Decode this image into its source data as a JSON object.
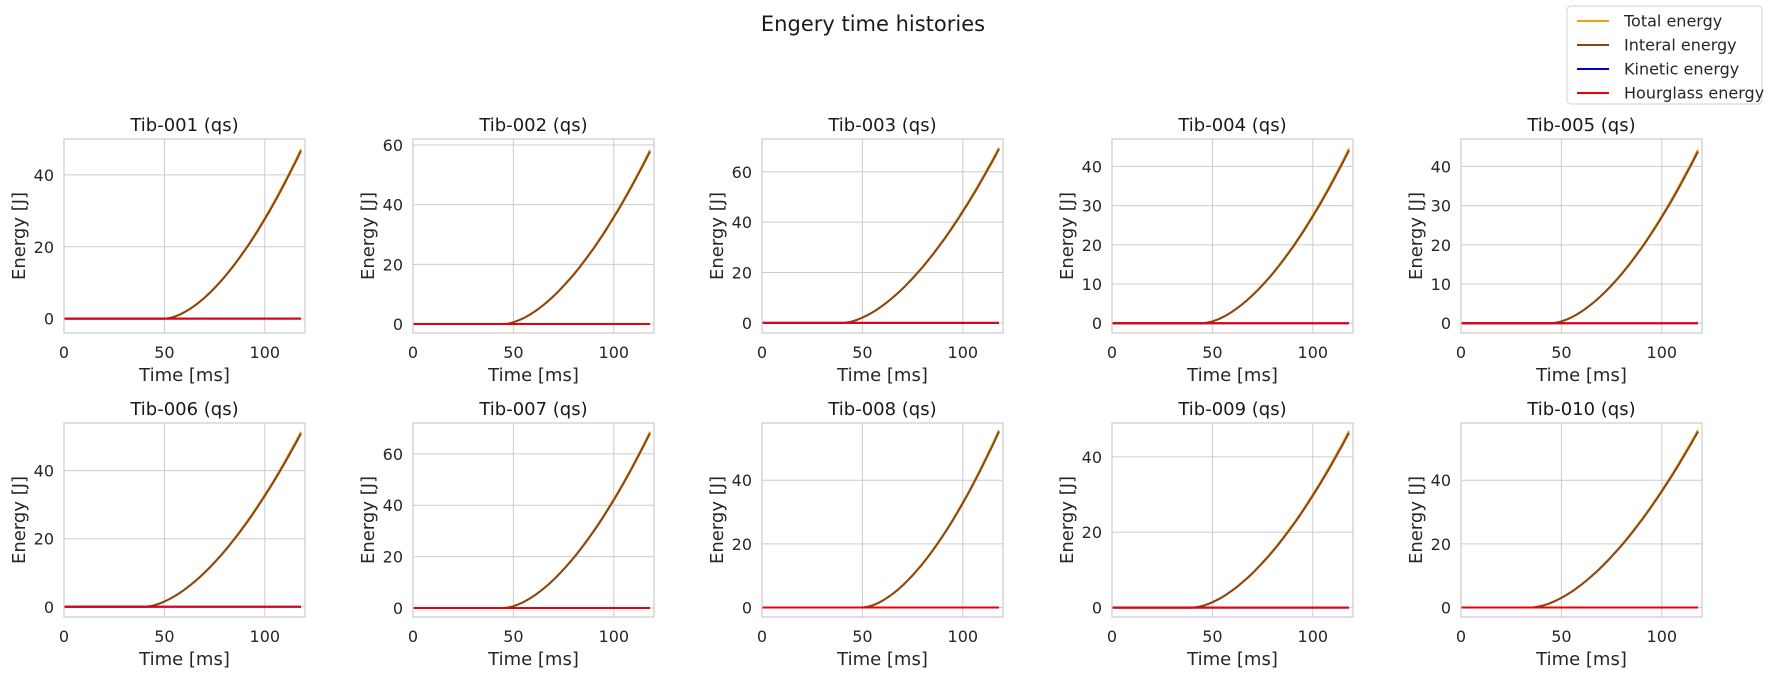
{
  "title": "Engery time histories",
  "legend": [
    {
      "label": "Total energy",
      "color": "#e8a317"
    },
    {
      "label": "Interal energy",
      "color": "#8b4513"
    },
    {
      "label": "Kinetic energy",
      "color": "#0000cc"
    },
    {
      "label": "Hourglass energy",
      "color": "#e8000b"
    }
  ],
  "chart_data": [
    {
      "type": "line",
      "title": "Tib-001 (qs)",
      "xlabel": "Time [ms]",
      "ylabel": "Energy [J]",
      "xlim": [
        0,
        120
      ],
      "ylim": [
        -4,
        50
      ],
      "xticks": [
        0,
        50,
        100
      ],
      "yticks": [
        0,
        20,
        40
      ],
      "onset": 50,
      "final_total": 47.2,
      "final_internal": 46.7
    },
    {
      "type": "line",
      "title": "Tib-002 (qs)",
      "xlabel": "Time [ms]",
      "ylabel": "Energy [J]",
      "xlim": [
        0,
        120
      ],
      "ylim": [
        -3,
        62
      ],
      "xticks": [
        0,
        50,
        100
      ],
      "yticks": [
        0,
        20,
        40,
        60
      ],
      "onset": 45,
      "final_total": 58.3,
      "final_internal": 57.8
    },
    {
      "type": "line",
      "title": "Tib-003 (qs)",
      "xlabel": "Time [ms]",
      "ylabel": "Energy [J]",
      "xlim": [
        0,
        120
      ],
      "ylim": [
        -4,
        73
      ],
      "xticks": [
        0,
        50,
        100
      ],
      "yticks": [
        0,
        20,
        40,
        60
      ],
      "onset": 40,
      "final_total": 69.6,
      "final_internal": 69.0
    },
    {
      "type": "line",
      "title": "Tib-004 (qs)",
      "xlabel": "Time [ms]",
      "ylabel": "Energy [J]",
      "xlim": [
        0,
        120
      ],
      "ylim": [
        -2.5,
        47
      ],
      "xticks": [
        0,
        50,
        100
      ],
      "yticks": [
        0,
        10,
        20,
        30,
        40
      ],
      "onset": 45,
      "final_total": 44.6,
      "final_internal": 44.1
    },
    {
      "type": "line",
      "title": "Tib-005 (qs)",
      "xlabel": "Time [ms]",
      "ylabel": "Energy [J]",
      "xlim": [
        0,
        120
      ],
      "ylim": [
        -2.5,
        47
      ],
      "xticks": [
        0,
        50,
        100
      ],
      "yticks": [
        0,
        10,
        20,
        30,
        40
      ],
      "onset": 45,
      "final_total": 44.3,
      "final_internal": 43.8
    },
    {
      "type": "line",
      "title": "Tib-006 (qs)",
      "xlabel": "Time [ms]",
      "ylabel": "Energy [J]",
      "xlim": [
        0,
        120
      ],
      "ylim": [
        -3,
        54
      ],
      "xticks": [
        0,
        50,
        100
      ],
      "yticks": [
        0,
        20,
        40
      ],
      "onset": 40,
      "final_total": 51.4,
      "final_internal": 50.9
    },
    {
      "type": "line",
      "title": "Tib-007 (qs)",
      "xlabel": "Time [ms]",
      "ylabel": "Energy [J]",
      "xlim": [
        0,
        120
      ],
      "ylim": [
        -3.5,
        72
      ],
      "xticks": [
        0,
        50,
        100
      ],
      "yticks": [
        0,
        20,
        40,
        60
      ],
      "onset": 45,
      "final_total": 68.6,
      "final_internal": 68.0
    },
    {
      "type": "line",
      "title": "Tib-008 (qs)",
      "xlabel": "Time [ms]",
      "ylabel": "Energy [J]",
      "xlim": [
        0,
        120
      ],
      "ylim": [
        -3,
        58
      ],
      "xticks": [
        0,
        50,
        100
      ],
      "yticks": [
        0,
        20,
        40
      ],
      "onset": 50,
      "final_total": 55.8,
      "final_internal": 55.3
    },
    {
      "type": "line",
      "title": "Tib-009 (qs)",
      "xlabel": "Time [ms]",
      "ylabel": "Energy [J]",
      "xlim": [
        0,
        120
      ],
      "ylim": [
        -2.5,
        49
      ],
      "xticks": [
        0,
        50,
        100
      ],
      "yticks": [
        0,
        20,
        40
      ],
      "onset": 40,
      "final_total": 46.9,
      "final_internal": 46.4
    },
    {
      "type": "line",
      "title": "Tib-010 (qs)",
      "xlabel": "Time [ms]",
      "ylabel": "Energy [J]",
      "xlim": [
        0,
        120
      ],
      "ylim": [
        -3,
        58
      ],
      "xticks": [
        0,
        50,
        100
      ],
      "yticks": [
        0,
        20,
        40
      ],
      "onset": 35,
      "final_total": 55.8,
      "final_internal": 55.3
    }
  ]
}
